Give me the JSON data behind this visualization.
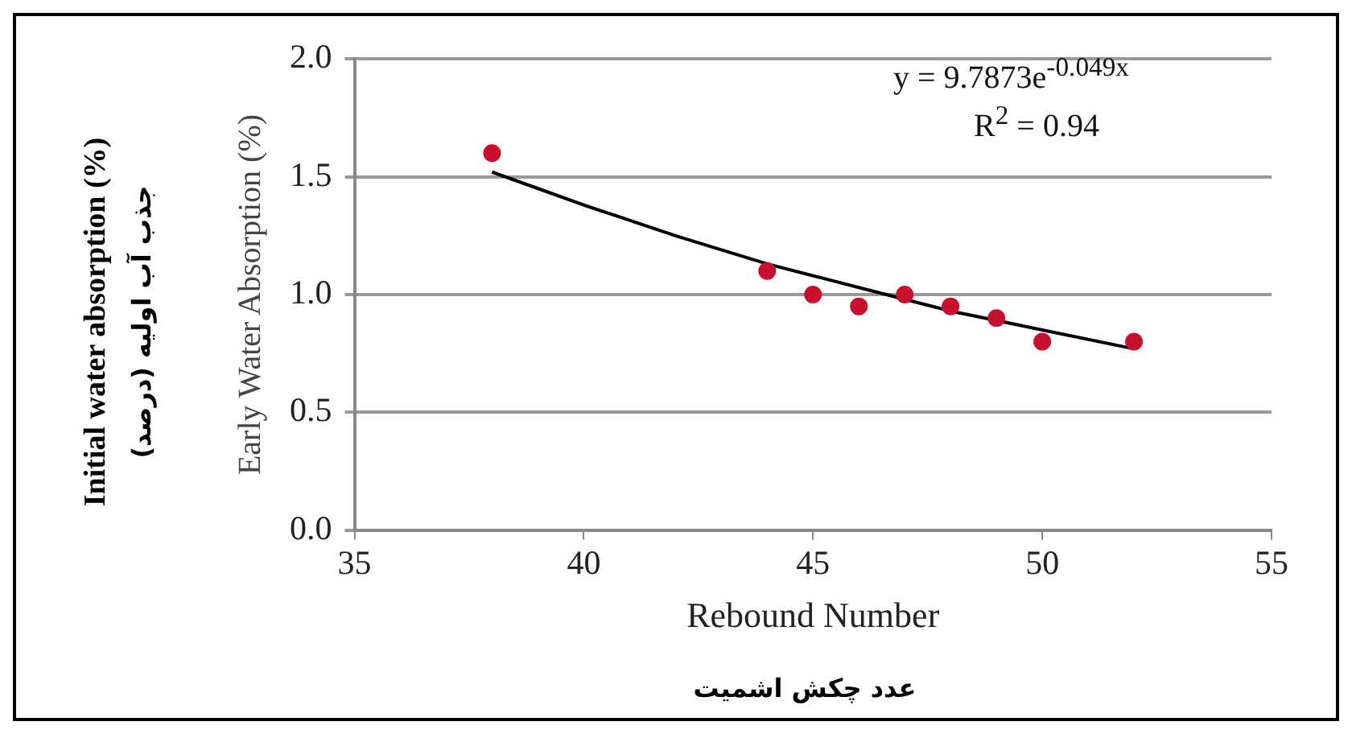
{
  "chart_data": {
    "type": "scatter",
    "xlabel": "Rebound Number",
    "ylabel": "Early Water Absorption (%)",
    "annotations": [
      "y = 9.7873e$^{-0.049x}$",
      "R$^{2}$ = 0.94",
      "Initial water absorption (%)",
      "جذب آب اولیه (درصد)",
      "عدد چکش اشمیت"
    ],
    "series": [
      {
        "color": "#c8102e",
        "marker": "circle",
        "x": [
          38,
          44,
          45,
          46,
          47,
          48,
          49,
          50,
          52
        ],
        "values": [
          1.6,
          1.1,
          1.0,
          0.95,
          1.0,
          0.95,
          0.9,
          0.8,
          0.8
        ]
      },
      {
        "type": "line",
        "color": "#000000",
        "x": [
          38,
          40,
          42,
          44,
          46,
          48,
          50,
          52
        ],
        "values": [
          1.52,
          1.38,
          1.25,
          1.13,
          1.03,
          0.93,
          0.85,
          0.77
        ]
      }
    ],
    "xlim": [
      35,
      55
    ],
    "xticks": [
      35,
      40,
      45,
      50,
      55
    ],
    "ylim": [
      0,
      2
    ],
    "yticks": [
      {
        "value": 0,
        "label": "0.0"
      },
      {
        "value": 0.5,
        "label": "0.5"
      },
      {
        "value": 1,
        "label": "1.0"
      },
      {
        "value": 1.5,
        "label": "1.5"
      },
      {
        "value": 2,
        "label": "2.0"
      }
    ],
    "grid": "y",
    "legend": false,
    "line_style": "solid"
  }
}
